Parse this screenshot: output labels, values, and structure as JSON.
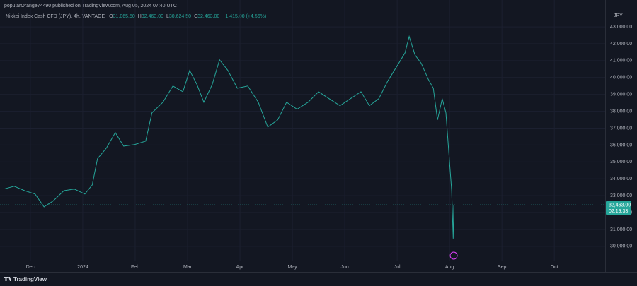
{
  "chart_data": {
    "type": "line",
    "attribution": "popularOrange74490 published on TradingView.com, Aug 05, 2024 07:40 UTC",
    "symbol": "Nikkei Index Cash CFD (JPY), 4h, VANTAGE",
    "ohlc": [
      {
        "key": "O",
        "value": "31,065.50"
      },
      {
        "key": "H",
        "value": "32,463.00"
      },
      {
        "key": "L",
        "value": "30,624.50"
      },
      {
        "key": "C",
        "value": "32,463.00"
      }
    ],
    "change": "+1,415.00 (+4.56%)",
    "currency": "JPY",
    "brand": "TradingView",
    "series": [
      {
        "name": "Nikkei Index Cash CFD (JPY)",
        "color": "#26a69a",
        "x": [
          -0.51,
          -0.31,
          -0.11,
          0.09,
          0.26,
          0.43,
          0.64,
          0.84,
          1.04,
          1.18,
          1.28,
          1.45,
          1.62,
          1.78,
          1.99,
          2.2,
          2.32,
          2.53,
          2.72,
          2.91,
          3.04,
          3.18,
          3.31,
          3.47,
          3.61,
          3.77,
          3.95,
          4.15,
          4.35,
          4.53,
          4.72,
          4.89,
          5.09,
          5.3,
          5.5,
          5.7,
          5.91,
          6.11,
          6.31,
          6.47,
          6.65,
          6.82,
          7.03,
          7.15,
          7.23,
          7.34,
          7.46,
          7.59,
          7.69,
          7.77,
          7.86,
          7.93,
          7.99,
          8.04,
          8.07,
          8.08
        ],
        "values": [
          33390,
          33560,
          33300,
          33100,
          32340,
          32680,
          33300,
          33390,
          33100,
          33640,
          35190,
          35820,
          36740,
          35940,
          36030,
          36230,
          37910,
          38540,
          39500,
          39160,
          40420,
          39580,
          38540,
          39580,
          41050,
          40420,
          39370,
          39500,
          38540,
          37070,
          37490,
          38540,
          38120,
          38540,
          39160,
          38750,
          38330,
          38750,
          39160,
          38330,
          38750,
          39790,
          40840,
          41460,
          42430,
          41340,
          40840,
          39920,
          39370,
          37490,
          38750,
          37910,
          35400,
          33310,
          30460,
          32463
        ]
      }
    ],
    "price_label": {
      "value": 32463,
      "label": "32,463.00"
    },
    "countdown": "02:19:33",
    "xlim": [
      -0.58,
      10.97
    ],
    "xticks": [
      {
        "value": 0,
        "label": "Dec"
      },
      {
        "value": 1,
        "label": "2024"
      },
      {
        "value": 2,
        "label": "Feb"
      },
      {
        "value": 3,
        "label": "Mar"
      },
      {
        "value": 4,
        "label": "Apr"
      },
      {
        "value": 5,
        "label": "May"
      },
      {
        "value": 6,
        "label": "Jun"
      },
      {
        "value": 7,
        "label": "Jul"
      },
      {
        "value": 8,
        "label": "Aug"
      },
      {
        "value": 9,
        "label": "Sep"
      },
      {
        "value": 10,
        "label": "Oct"
      }
    ],
    "ylim": [
      29200,
      43840
    ],
    "yticks": [
      {
        "value": 30000,
        "label": "30,000.00"
      },
      {
        "value": 31000,
        "label": "31,000.00"
      },
      {
        "value": 32000,
        "label": "32,000.00"
      },
      {
        "value": 33000,
        "label": "33,000.00"
      },
      {
        "value": 34000,
        "label": "34,000.00"
      },
      {
        "value": 35000,
        "label": "35,000.00"
      },
      {
        "value": 36000,
        "label": "36,000.00"
      },
      {
        "value": 37000,
        "label": "37,000.00"
      },
      {
        "value": 38000,
        "label": "38,000.00"
      },
      {
        "value": 39000,
        "label": "39,000.00"
      },
      {
        "value": 40000,
        "label": "40,000.00"
      },
      {
        "value": 41000,
        "label": "41,000.00"
      },
      {
        "value": 42000,
        "label": "42,000.00"
      },
      {
        "value": 43000,
        "label": "43,000.00"
      }
    ],
    "grid": true
  }
}
